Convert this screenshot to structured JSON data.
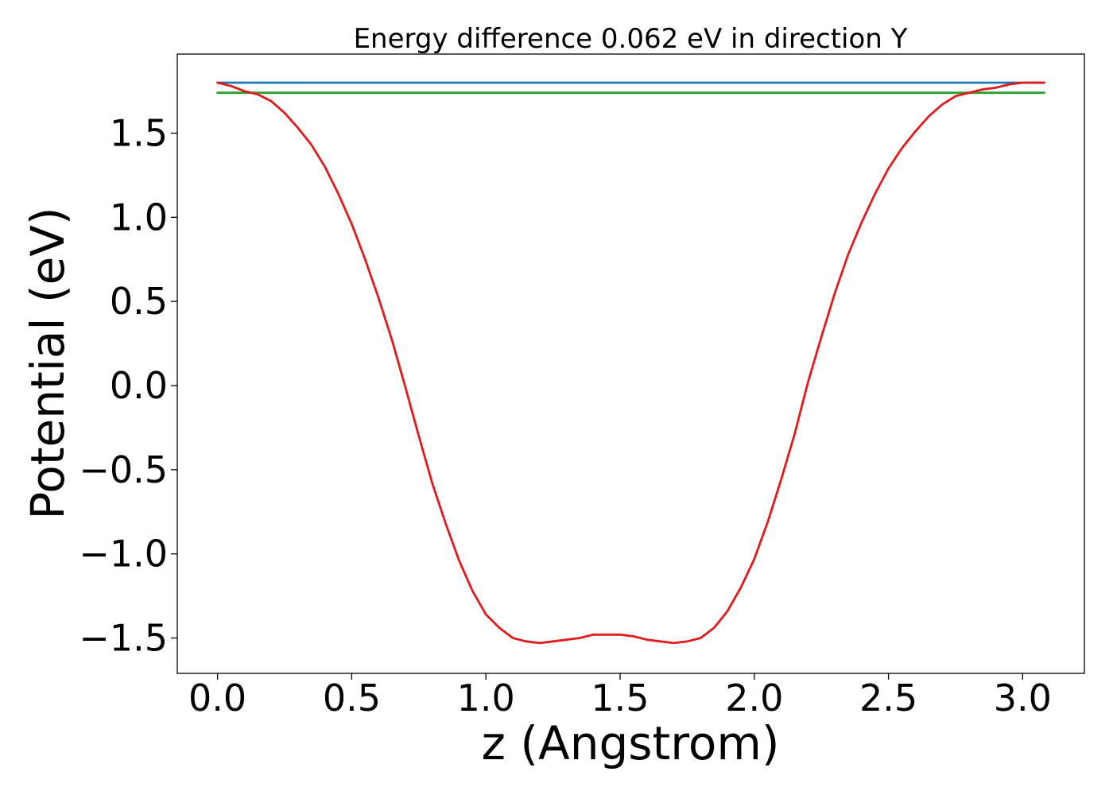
{
  "chart_data": {
    "type": "line",
    "title": "Energy difference 0.062 eV in direction Y",
    "xlabel": "z (Angstrom)",
    "ylabel": "Potential (eV)",
    "xlim": [
      -0.15,
      3.23
    ],
    "ylim": [
      -1.71,
      1.97
    ],
    "xticks": [
      0.0,
      0.5,
      1.0,
      1.5,
      2.0,
      2.5,
      3.0
    ],
    "yticks": [
      -1.5,
      -1.0,
      -0.5,
      0.0,
      0.5,
      1.0,
      1.5
    ],
    "xtick_labels": [
      "0.0",
      "0.5",
      "1.0",
      "1.5",
      "2.0",
      "2.5",
      "3.0"
    ],
    "ytick_labels": [
      "−1.5",
      "−1.0",
      "−0.5",
      "0.0",
      "0.5",
      "1.0",
      "1.5"
    ],
    "grid": false,
    "series": [
      {
        "color": "#1f77b4",
        "x": [
          0.0,
          3.08
        ],
        "y": [
          1.8,
          1.8
        ]
      },
      {
        "color": "#2ca02c",
        "x": [
          0.0,
          3.08
        ],
        "y": [
          1.74,
          1.74
        ]
      },
      {
        "color": "#e31a1c",
        "x": [
          0.0,
          0.05,
          0.1,
          0.15,
          0.2,
          0.25,
          0.3,
          0.35,
          0.4,
          0.45,
          0.5,
          0.55,
          0.6,
          0.65,
          0.7,
          0.75,
          0.8,
          0.85,
          0.9,
          0.95,
          1.0,
          1.05,
          1.1,
          1.15,
          1.2,
          1.25,
          1.3,
          1.35,
          1.4,
          1.45,
          1.5,
          1.55,
          1.6,
          1.65,
          1.7,
          1.75,
          1.8,
          1.85,
          1.9,
          1.95,
          2.0,
          2.05,
          2.1,
          2.15,
          2.2,
          2.25,
          2.3,
          2.35,
          2.4,
          2.45,
          2.5,
          2.55,
          2.6,
          2.65,
          2.7,
          2.75,
          2.8,
          2.85,
          2.9,
          2.95,
          3.0,
          3.05,
          3.08
        ],
        "y": [
          1.8,
          1.78,
          1.75,
          1.73,
          1.69,
          1.62,
          1.53,
          1.43,
          1.3,
          1.14,
          0.96,
          0.75,
          0.52,
          0.27,
          -0.01,
          -0.3,
          -0.58,
          -0.82,
          -1.04,
          -1.22,
          -1.36,
          -1.44,
          -1.5,
          -1.52,
          -1.53,
          -1.52,
          -1.51,
          -1.5,
          -1.48,
          -1.48,
          -1.48,
          -1.49,
          -1.51,
          -1.52,
          -1.53,
          -1.52,
          -1.5,
          -1.44,
          -1.34,
          -1.2,
          -1.03,
          -0.81,
          -0.56,
          -0.29,
          0.02,
          0.29,
          0.55,
          0.78,
          0.97,
          1.14,
          1.29,
          1.41,
          1.51,
          1.6,
          1.67,
          1.72,
          1.74,
          1.76,
          1.77,
          1.79,
          1.8,
          1.8,
          1.8
        ]
      }
    ]
  }
}
